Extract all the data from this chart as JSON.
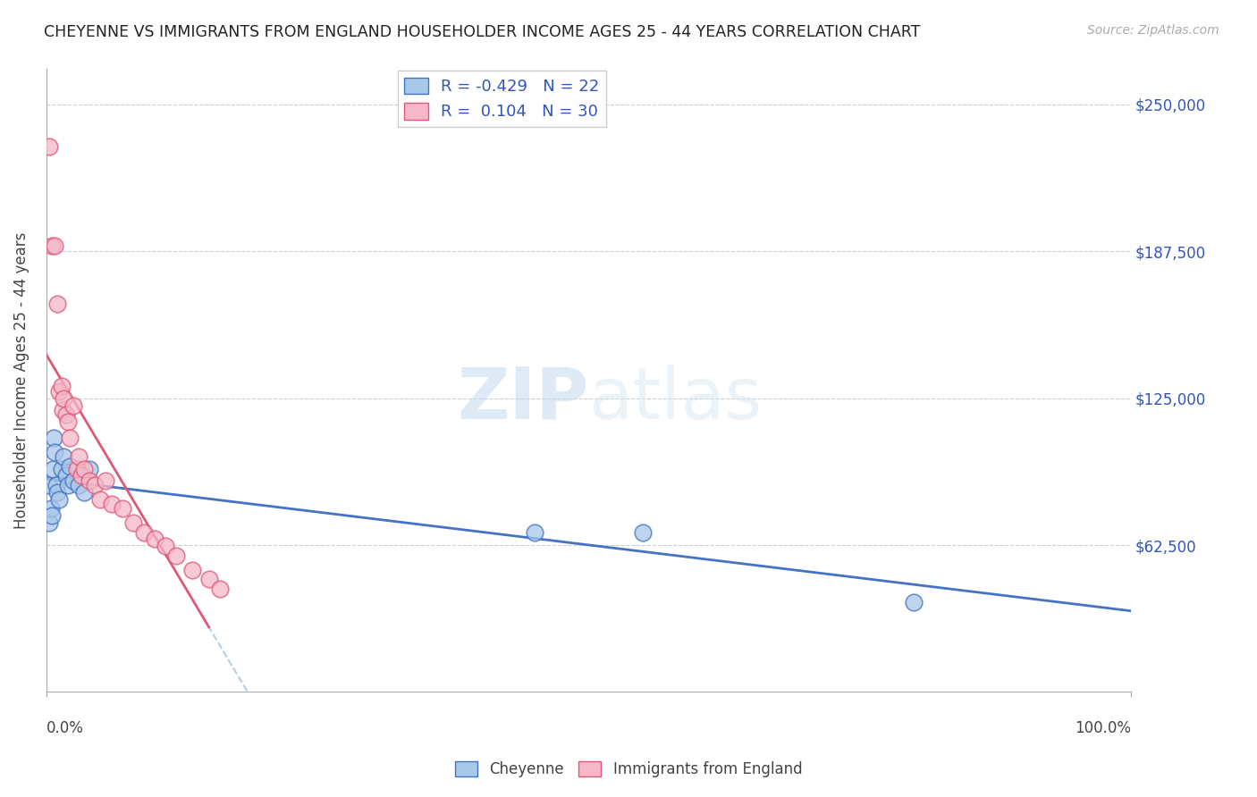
{
  "title": "CHEYENNE VS IMMIGRANTS FROM ENGLAND HOUSEHOLDER INCOME AGES 25 - 44 YEARS CORRELATION CHART",
  "source": "Source: ZipAtlas.com",
  "ylabel": "Householder Income Ages 25 - 44 years",
  "watermark_zip": "ZIP",
  "watermark_atlas": "atlas",
  "legend_label1": "Cheyenne",
  "legend_label2": "Immigrants from England",
  "R1": "-0.429",
  "N1": "22",
  "R2": "0.104",
  "N2": "30",
  "color_cheyenne": "#a8c8e8",
  "color_england": "#f4b8c8",
  "line_color_cheyenne": "#4472c4",
  "line_color_england": "#e05878",
  "trendline_color_dashed": "#b8cce4",
  "cheyenne_x": [
    0.2,
    0.3,
    0.4,
    0.5,
    0.6,
    0.7,
    0.8,
    0.9,
    1.0,
    1.2,
    1.4,
    1.6,
    1.8,
    2.0,
    2.2,
    2.5,
    3.0,
    3.5,
    4.0,
    45.0,
    55.0,
    80.0
  ],
  "cheyenne_y": [
    88000,
    72000,
    78000,
    75000,
    95000,
    108000,
    102000,
    88000,
    85000,
    82000,
    95000,
    100000,
    92000,
    88000,
    96000,
    90000,
    88000,
    85000,
    95000,
    68000,
    68000,
    38000
  ],
  "england_x": [
    0.3,
    0.5,
    0.8,
    1.0,
    1.2,
    1.4,
    1.5,
    1.6,
    1.8,
    2.0,
    2.2,
    2.5,
    2.8,
    3.0,
    3.2,
    3.5,
    4.0,
    4.5,
    5.0,
    5.5,
    6.0,
    7.0,
    8.0,
    9.0,
    10.0,
    11.0,
    12.0,
    13.5,
    15.0,
    16.0
  ],
  "england_y": [
    232000,
    190000,
    190000,
    165000,
    128000,
    130000,
    120000,
    125000,
    118000,
    115000,
    108000,
    122000,
    95000,
    100000,
    92000,
    95000,
    90000,
    88000,
    82000,
    90000,
    80000,
    78000,
    72000,
    68000,
    65000,
    62000,
    58000,
    52000,
    48000,
    44000
  ],
  "xlim_data": [
    0,
    100
  ],
  "ylim_data": [
    0,
    265000
  ],
  "y_ticks": [
    62500,
    125000,
    187500,
    250000
  ],
  "y_tick_labels": [
    "$62,500",
    "$125,000",
    "$187,500",
    "$250,000"
  ],
  "figsize": [
    14.06,
    8.92
  ],
  "dpi": 100
}
